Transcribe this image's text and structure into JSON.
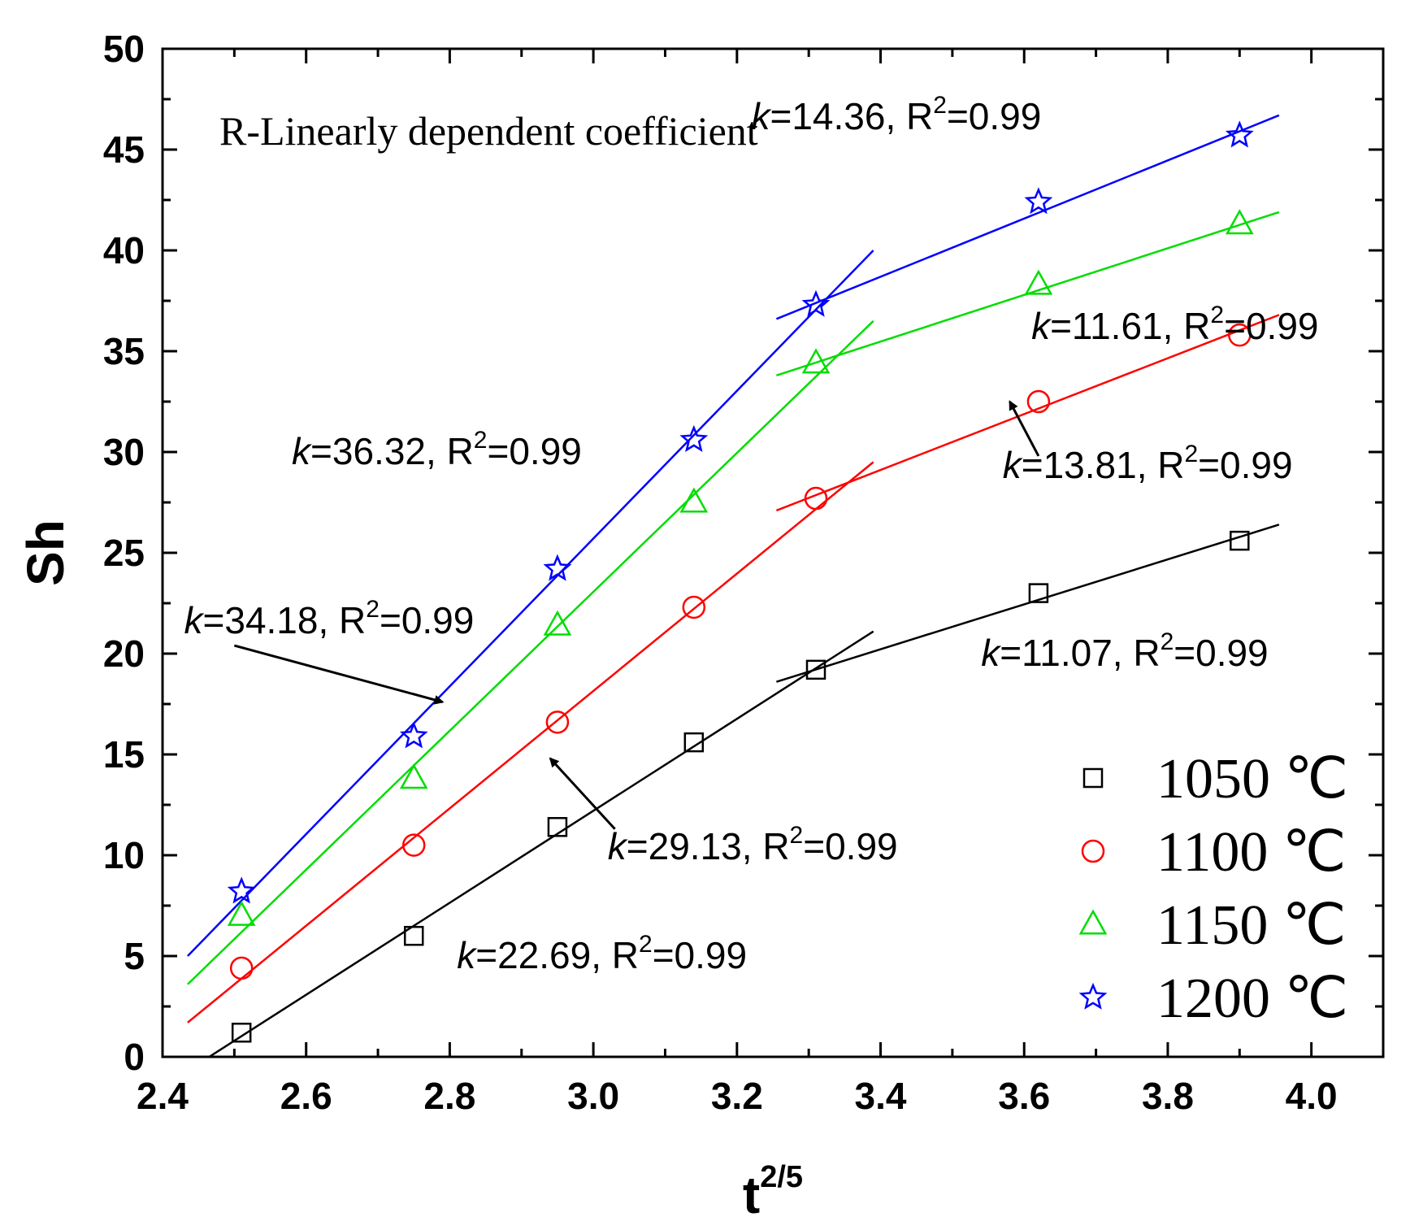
{
  "chart_data": {
    "type": "scatter",
    "xlabel": "t",
    "xlabel_sup": "2/5",
    "ylabel": "Sh",
    "xlim": [
      2.4,
      4.1
    ],
    "ylim": [
      0,
      50
    ],
    "xticks": [
      "2.4",
      "2.6",
      "2.8",
      "3.0",
      "3.2",
      "3.4",
      "3.6",
      "3.8",
      "4.0"
    ],
    "yticks": [
      "0",
      "5",
      "10",
      "15",
      "20",
      "25",
      "30",
      "35",
      "40",
      "45",
      "50"
    ],
    "legend_position": "bottom-right",
    "series": [
      {
        "name": "1050 ℃",
        "color": "#000000",
        "marker": "square",
        "x": [
          2.51,
          2.75,
          2.95,
          3.14,
          3.31,
          3.62,
          3.9
        ],
        "y": [
          1.2,
          6.0,
          11.4,
          15.6,
          19.2,
          23.0,
          25.6
        ],
        "fits": [
          {
            "x": [
              2.465,
              3.39
            ],
            "y": [
              0.0,
              21.1
            ]
          },
          {
            "x": [
              3.255,
              3.955
            ],
            "y": [
              18.6,
              26.4
            ]
          }
        ]
      },
      {
        "name": "1100 ℃",
        "color": "#ff0000",
        "marker": "circle",
        "x": [
          2.51,
          2.75,
          2.95,
          3.14,
          3.31,
          3.62,
          3.9
        ],
        "y": [
          4.4,
          10.5,
          16.6,
          22.3,
          27.7,
          32.5,
          35.8
        ],
        "fits": [
          {
            "x": [
              2.435,
              3.39
            ],
            "y": [
              1.7,
              29.5
            ]
          },
          {
            "x": [
              3.255,
              3.955
            ],
            "y": [
              27.1,
              36.8
            ]
          }
        ]
      },
      {
        "name": "1150 ℃",
        "color": "#00dd00",
        "marker": "triangle",
        "x": [
          2.51,
          2.75,
          2.95,
          3.14,
          3.31,
          3.62,
          3.9
        ],
        "y": [
          7.0,
          13.8,
          21.4,
          27.5,
          34.4,
          38.3,
          41.3
        ],
        "fits": [
          {
            "x": [
              2.435,
              3.39
            ],
            "y": [
              3.6,
              36.5
            ]
          },
          {
            "x": [
              3.255,
              3.955
            ],
            "y": [
              33.8,
              41.9
            ]
          }
        ]
      },
      {
        "name": "1200 ℃",
        "color": "#0000ff",
        "marker": "star",
        "x": [
          2.51,
          2.75,
          2.95,
          3.14,
          3.31,
          3.62,
          3.9
        ],
        "y": [
          8.2,
          15.9,
          24.2,
          30.6,
          37.3,
          42.4,
          45.7
        ],
        "fits": [
          {
            "x": [
              2.435,
              3.39
            ],
            "y": [
              5.0,
              40.0
            ]
          },
          {
            "x": [
              3.255,
              3.955
            ],
            "y": [
              36.6,
              46.7
            ]
          }
        ]
      }
    ],
    "title_annotation": "R-Linearly dependent coefficient",
    "annotations": [
      {
        "k": "k",
        "text": "=14.36, R",
        "sup": "2",
        "tail": "=0.99",
        "x": 3.22,
        "y": 46.0
      },
      {
        "k": "k",
        "text": "=11.61, R",
        "sup": "2",
        "tail": "=0.99",
        "x": 3.61,
        "y": 35.6
      },
      {
        "k": "k",
        "text": "=36.32, R",
        "sup": "2",
        "tail": "=0.99",
        "x": 2.58,
        "y": 29.4
      },
      {
        "k": "k",
        "text": "=13.81, R",
        "sup": "2",
        "tail": "=0.99",
        "x": 3.57,
        "y": 28.7
      },
      {
        "k": "k",
        "text": "=34.18, R",
        "sup": "2",
        "tail": "=0.99",
        "x": 2.43,
        "y": 21.0
      },
      {
        "k": "k",
        "text": "=11.07, R",
        "sup": "2",
        "tail": "=0.99",
        "x": 3.54,
        "y": 19.4
      },
      {
        "k": "k",
        "text": "=29.13, R",
        "sup": "2",
        "tail": "=0.99",
        "x": 3.02,
        "y": 9.8
      },
      {
        "k": "k",
        "text": "=22.69, R",
        "sup": "2",
        "tail": "=0.99",
        "x": 2.81,
        "y": 4.4
      }
    ],
    "arrows": [
      {
        "from": [
          2.5,
          20.4
        ],
        "to": [
          2.79,
          17.6
        ]
      },
      {
        "from": [
          3.03,
          11.3
        ],
        "to": [
          2.94,
          14.8
        ]
      },
      {
        "from": [
          3.62,
          29.8
        ],
        "to": [
          3.58,
          32.5
        ]
      }
    ]
  }
}
